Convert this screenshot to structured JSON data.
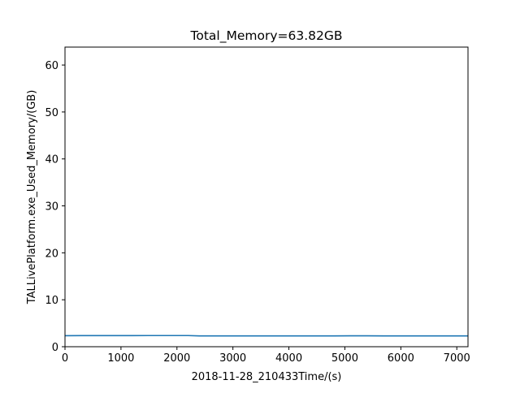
{
  "chart_data": {
    "type": "line",
    "title": "Total_Memory=63.82GB",
    "xlabel": "2018-11-28_210433Time/(s)",
    "ylabel": "TALLivePlatform.exe_Used_Memory/(GB)",
    "xlim": [
      0,
      7200
    ],
    "ylim": [
      0,
      63.82
    ],
    "xticks": [
      0,
      1000,
      2000,
      3000,
      4000,
      5000,
      6000,
      7000
    ],
    "yticks": [
      0,
      10,
      20,
      30,
      40,
      50,
      60
    ],
    "grid": false,
    "series": [
      {
        "color": "#1f77b4",
        "x": [
          0,
          300,
          600,
          900,
          1200,
          1500,
          1800,
          2100,
          2200,
          2400,
          2700,
          3000,
          3300,
          3600,
          3900,
          4200,
          4500,
          4800,
          5100,
          5400,
          5700,
          6000,
          6300,
          6600,
          6900,
          7200
        ],
        "y": [
          2.35,
          2.36,
          2.36,
          2.37,
          2.37,
          2.38,
          2.38,
          2.38,
          2.38,
          2.3,
          2.3,
          2.3,
          2.31,
          2.31,
          2.31,
          2.31,
          2.31,
          2.31,
          2.32,
          2.32,
          2.31,
          2.31,
          2.3,
          2.3,
          2.3,
          2.3
        ]
      }
    ]
  }
}
